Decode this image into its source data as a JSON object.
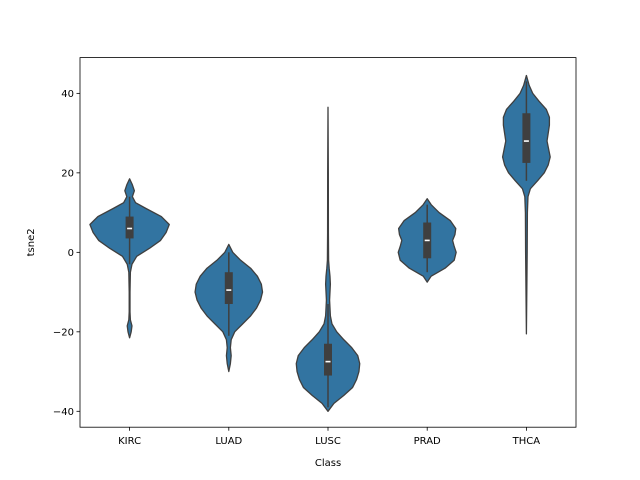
{
  "chart_data": {
    "type": "violin",
    "title": "",
    "xlabel": "Class",
    "ylabel": "tsne2",
    "ylim": [
      -44,
      49
    ],
    "yticks": [
      -40,
      -20,
      0,
      20,
      40
    ],
    "grid": false,
    "legend": "none",
    "categories": [
      "KIRC",
      "LUAD",
      "LUSC",
      "PRAD",
      "THCA"
    ],
    "colors": {
      "fill": "#3274a1",
      "edge": "#3f3f3f",
      "box": "#3f3f3f",
      "median": "#ffffff"
    },
    "series": [
      {
        "category": "KIRC",
        "min": -21.5,
        "q1": 3.5,
        "median": 6,
        "q3": 9,
        "max": 18.5,
        "whisker_low": -3,
        "whisker_high": 14,
        "profile": [
          [
            -21.5,
            0
          ],
          [
            -20,
            0.04
          ],
          [
            -18.5,
            0.06
          ],
          [
            -17,
            0.02
          ],
          [
            -15,
            0.01
          ],
          [
            -10,
            0.01
          ],
          [
            -5,
            0.02
          ],
          [
            -3,
            0.06
          ],
          [
            -1,
            0.18
          ],
          [
            1,
            0.5
          ],
          [
            3,
            0.78
          ],
          [
            5,
            0.92
          ],
          [
            7,
            1.0
          ],
          [
            9,
            0.8
          ],
          [
            11,
            0.42
          ],
          [
            12.5,
            0.15
          ],
          [
            14,
            0.07
          ],
          [
            15.5,
            0.12
          ],
          [
            17,
            0.07
          ],
          [
            18.5,
            0
          ]
        ]
      },
      {
        "category": "LUAD",
        "min": -30,
        "q1": -13,
        "median": -9.5,
        "q3": -5,
        "max": 2,
        "whisker_low": -21,
        "whisker_high": 0,
        "profile": [
          [
            -30,
            0
          ],
          [
            -28,
            0.04
          ],
          [
            -26,
            0.06
          ],
          [
            -24,
            0.04
          ],
          [
            -22,
            0.06
          ],
          [
            -20,
            0.15
          ],
          [
            -18,
            0.35
          ],
          [
            -16,
            0.55
          ],
          [
            -14,
            0.7
          ],
          [
            -12,
            0.8
          ],
          [
            -10,
            0.85
          ],
          [
            -8,
            0.82
          ],
          [
            -6,
            0.72
          ],
          [
            -4,
            0.55
          ],
          [
            -2,
            0.3
          ],
          [
            0,
            0.1
          ],
          [
            2,
            0
          ]
        ]
      },
      {
        "category": "LUSC",
        "min": -40,
        "q1": -31,
        "median": -27.5,
        "q3": -23,
        "max": 36.5,
        "whisker_low": -39,
        "whisker_high": -13,
        "profile": [
          [
            -40,
            0
          ],
          [
            -38,
            0.15
          ],
          [
            -36,
            0.4
          ],
          [
            -34,
            0.62
          ],
          [
            -32,
            0.72
          ],
          [
            -30,
            0.78
          ],
          [
            -28,
            0.8
          ],
          [
            -26,
            0.75
          ],
          [
            -24,
            0.6
          ],
          [
            -22,
            0.4
          ],
          [
            -20,
            0.22
          ],
          [
            -18,
            0.1
          ],
          [
            -16,
            0.06
          ],
          [
            -14,
            0.05
          ],
          [
            -12,
            0.04
          ],
          [
            -10,
            0.05
          ],
          [
            -8,
            0.06
          ],
          [
            -6,
            0.05
          ],
          [
            -4,
            0.03
          ],
          [
            -2,
            0.015
          ],
          [
            5,
            0.01
          ],
          [
            20,
            0.008
          ],
          [
            36.5,
            0
          ]
        ]
      },
      {
        "category": "PRAD",
        "min": -7.5,
        "q1": -1.5,
        "median": 3,
        "q3": 7.5,
        "max": 13.5,
        "whisker_low": -5,
        "whisker_high": 12,
        "profile": [
          [
            -7.5,
            0
          ],
          [
            -6,
            0.1
          ],
          [
            -4,
            0.45
          ],
          [
            -2,
            0.68
          ],
          [
            0,
            0.73
          ],
          [
            1.5,
            0.68
          ],
          [
            3,
            0.64
          ],
          [
            4.5,
            0.7
          ],
          [
            6,
            0.72
          ],
          [
            8,
            0.58
          ],
          [
            10,
            0.3
          ],
          [
            12,
            0.1
          ],
          [
            13.5,
            0
          ]
        ]
      },
      {
        "category": "THCA",
        "min": -20.5,
        "q1": 22.5,
        "median": 28,
        "q3": 35,
        "max": 44.5,
        "whisker_low": 18,
        "whisker_high": 43,
        "profile": [
          [
            -20.5,
            0
          ],
          [
            0,
            0.02
          ],
          [
            10,
            0.025
          ],
          [
            14,
            0.04
          ],
          [
            16,
            0.1
          ],
          [
            18,
            0.28
          ],
          [
            20,
            0.45
          ],
          [
            22,
            0.55
          ],
          [
            24,
            0.6
          ],
          [
            26,
            0.56
          ],
          [
            28,
            0.52
          ],
          [
            30,
            0.55
          ],
          [
            32,
            0.58
          ],
          [
            34,
            0.58
          ],
          [
            36,
            0.5
          ],
          [
            38,
            0.32
          ],
          [
            40,
            0.16
          ],
          [
            42,
            0.07
          ],
          [
            44.5,
            0
          ]
        ]
      }
    ]
  }
}
